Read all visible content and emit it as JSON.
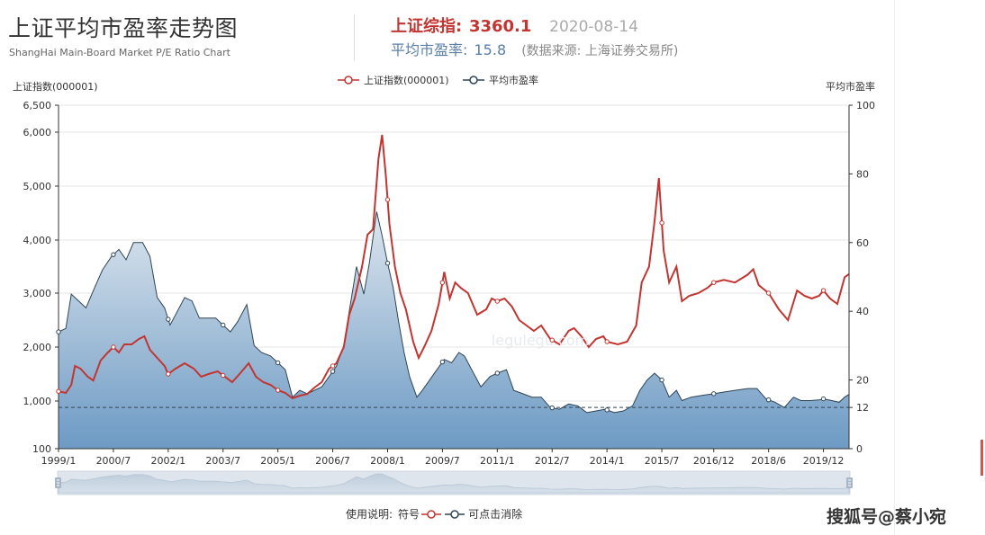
{
  "header": {
    "title": "上证平均市盈率走势图",
    "subtitle": "ShangHai Main-Board Market P/E Ratio Chart",
    "index_label": "上证综指:",
    "index_value": "3360.1",
    "date": "2020-08-14",
    "pe_label": "平均市盈率:",
    "pe_value": "15.8",
    "source": "(数据来源: 上海证券交易所)"
  },
  "usage": {
    "prefix": "使用说明:",
    "symbol": "符号",
    "suffix": "可点击消除"
  },
  "footer_watermark": "搜狐号@蔡小宛",
  "chart_watermark": "legulegu.com",
  "colors": {
    "index": "#c23531",
    "pe_line": "#2f4554",
    "pe_area_top": "#dde6ee",
    "pe_area_bottom": "#6d9ac4",
    "avg_line": "#2f4554"
  },
  "chart_data": {
    "type": "line",
    "legend": [
      "上证指数(000001)",
      "平均市盈率"
    ],
    "legend_position": "top-center",
    "left_axis_title": "上证指数(000001)",
    "right_axis_title": "平均市盈率",
    "left_ticks": [
      "6,500",
      "6,000",
      "5,000",
      "4,000",
      "3,000",
      "2,000",
      "1,000",
      "100"
    ],
    "left_tick_values": [
      6500,
      6000,
      5000,
      4000,
      3000,
      2000,
      1000,
      100
    ],
    "right_ticks": [
      "100",
      "80",
      "60",
      "40",
      "20",
      "12",
      "0"
    ],
    "right_tick_values": [
      100,
      80,
      60,
      40,
      20,
      12,
      0
    ],
    "x_labels": [
      "1999/1",
      "2000/7",
      "2002/1",
      "2003/7",
      "2005/1",
      "2006/7",
      "2008/1",
      "2009/7",
      "2011/1",
      "2012/7",
      "2014/1",
      "2015/7",
      "2016/12",
      "2018/6",
      "2019/12"
    ],
    "x_label_years": [
      1999.0,
      2000.5,
      2002.0,
      2003.5,
      2005.0,
      2006.5,
      2008.0,
      2009.5,
      2011.0,
      2012.5,
      2014.0,
      2015.5,
      2016.92,
      2018.42,
      2019.92
    ],
    "x_range": [
      1999.0,
      2020.62
    ],
    "pe_average_line": 12,
    "series": [
      {
        "name": "上证指数(000001)",
        "axis": "left",
        "points": [
          [
            1999.0,
            1180
          ],
          [
            1999.2,
            1150
          ],
          [
            1999.35,
            1300
          ],
          [
            1999.45,
            1650
          ],
          [
            1999.6,
            1600
          ],
          [
            1999.8,
            1450
          ],
          [
            1999.95,
            1380
          ],
          [
            2000.15,
            1750
          ],
          [
            2000.35,
            1900
          ],
          [
            2000.5,
            2000
          ],
          [
            2000.65,
            1900
          ],
          [
            2000.8,
            2050
          ],
          [
            2001.0,
            2050
          ],
          [
            2001.2,
            2150
          ],
          [
            2001.35,
            2200
          ],
          [
            2001.5,
            1950
          ],
          [
            2001.7,
            1800
          ],
          [
            2001.9,
            1650
          ],
          [
            2002.0,
            1500
          ],
          [
            2002.2,
            1600
          ],
          [
            2002.45,
            1700
          ],
          [
            2002.7,
            1600
          ],
          [
            2002.9,
            1450
          ],
          [
            2003.1,
            1500
          ],
          [
            2003.35,
            1550
          ],
          [
            2003.55,
            1450
          ],
          [
            2003.75,
            1350
          ],
          [
            2003.95,
            1500
          ],
          [
            2004.2,
            1700
          ],
          [
            2004.4,
            1450
          ],
          [
            2004.6,
            1350
          ],
          [
            2004.8,
            1300
          ],
          [
            2005.0,
            1200
          ],
          [
            2005.2,
            1150
          ],
          [
            2005.4,
            1050
          ],
          [
            2005.6,
            1100
          ],
          [
            2005.8,
            1130
          ],
          [
            2006.0,
            1250
          ],
          [
            2006.2,
            1350
          ],
          [
            2006.4,
            1600
          ],
          [
            2006.6,
            1700
          ],
          [
            2006.8,
            2000
          ],
          [
            2006.95,
            2600
          ],
          [
            2007.1,
            2900
          ],
          [
            2007.3,
            3500
          ],
          [
            2007.45,
            4100
          ],
          [
            2007.6,
            4200
          ],
          [
            2007.75,
            5500
          ],
          [
            2007.85,
            5950
          ],
          [
            2007.95,
            5200
          ],
          [
            2008.05,
            4300
          ],
          [
            2008.2,
            3500
          ],
          [
            2008.35,
            3000
          ],
          [
            2008.5,
            2700
          ],
          [
            2008.7,
            2100
          ],
          [
            2008.85,
            1800
          ],
          [
            2009.0,
            2000
          ],
          [
            2009.2,
            2300
          ],
          [
            2009.4,
            2800
          ],
          [
            2009.55,
            3400
          ],
          [
            2009.7,
            2900
          ],
          [
            2009.85,
            3200
          ],
          [
            2010.0,
            3100
          ],
          [
            2010.2,
            3000
          ],
          [
            2010.45,
            2600
          ],
          [
            2010.7,
            2700
          ],
          [
            2010.85,
            2900
          ],
          [
            2011.0,
            2850
          ],
          [
            2011.2,
            2900
          ],
          [
            2011.4,
            2750
          ],
          [
            2011.6,
            2500
          ],
          [
            2011.8,
            2400
          ],
          [
            2012.0,
            2300
          ],
          [
            2012.2,
            2400
          ],
          [
            2012.45,
            2150
          ],
          [
            2012.7,
            2050
          ],
          [
            2012.95,
            2300
          ],
          [
            2013.1,
            2350
          ],
          [
            2013.3,
            2200
          ],
          [
            2013.5,
            2000
          ],
          [
            2013.7,
            2150
          ],
          [
            2013.9,
            2200
          ],
          [
            2014.0,
            2100
          ],
          [
            2014.3,
            2050
          ],
          [
            2014.55,
            2100
          ],
          [
            2014.8,
            2400
          ],
          [
            2014.95,
            3200
          ],
          [
            2015.15,
            3500
          ],
          [
            2015.3,
            4350
          ],
          [
            2015.42,
            5150
          ],
          [
            2015.55,
            3800
          ],
          [
            2015.7,
            3200
          ],
          [
            2015.9,
            3500
          ],
          [
            2016.05,
            2850
          ],
          [
            2016.25,
            2950
          ],
          [
            2016.5,
            3000
          ],
          [
            2016.75,
            3100
          ],
          [
            2016.92,
            3200
          ],
          [
            2017.2,
            3250
          ],
          [
            2017.5,
            3200
          ],
          [
            2017.85,
            3350
          ],
          [
            2018.0,
            3450
          ],
          [
            2018.15,
            3150
          ],
          [
            2018.42,
            3000
          ],
          [
            2018.7,
            2700
          ],
          [
            2018.95,
            2500
          ],
          [
            2019.2,
            3050
          ],
          [
            2019.4,
            2950
          ],
          [
            2019.6,
            2900
          ],
          [
            2019.8,
            2950
          ],
          [
            2019.92,
            3050
          ],
          [
            2020.1,
            2900
          ],
          [
            2020.3,
            2800
          ],
          [
            2020.5,
            3300
          ],
          [
            2020.62,
            3360
          ]
        ]
      },
      {
        "name": "平均市盈率",
        "axis": "right",
        "points": [
          [
            1999.0,
            34
          ],
          [
            1999.2,
            35
          ],
          [
            1999.35,
            45
          ],
          [
            1999.55,
            43
          ],
          [
            1999.75,
            41
          ],
          [
            1999.95,
            46
          ],
          [
            2000.2,
            52
          ],
          [
            2000.45,
            56
          ],
          [
            2000.65,
            58
          ],
          [
            2000.85,
            55
          ],
          [
            2001.05,
            60
          ],
          [
            2001.3,
            60
          ],
          [
            2001.5,
            56
          ],
          [
            2001.7,
            44
          ],
          [
            2001.9,
            41
          ],
          [
            2002.05,
            36
          ],
          [
            2002.25,
            40
          ],
          [
            2002.45,
            44
          ],
          [
            2002.65,
            43
          ],
          [
            2002.85,
            38
          ],
          [
            2003.05,
            38
          ],
          [
            2003.3,
            38
          ],
          [
            2003.5,
            36
          ],
          [
            2003.7,
            34
          ],
          [
            2003.9,
            37
          ],
          [
            2004.15,
            42
          ],
          [
            2004.35,
            30
          ],
          [
            2004.55,
            28
          ],
          [
            2004.8,
            27
          ],
          [
            2005.0,
            25
          ],
          [
            2005.2,
            23
          ],
          [
            2005.4,
            15
          ],
          [
            2005.6,
            17
          ],
          [
            2005.8,
            16
          ],
          [
            2006.0,
            17
          ],
          [
            2006.2,
            18
          ],
          [
            2006.4,
            21
          ],
          [
            2006.6,
            24
          ],
          [
            2006.8,
            30
          ],
          [
            2006.95,
            40
          ],
          [
            2007.15,
            53
          ],
          [
            2007.35,
            45
          ],
          [
            2007.5,
            54
          ],
          [
            2007.7,
            69
          ],
          [
            2007.85,
            62
          ],
          [
            2008.0,
            54
          ],
          [
            2008.15,
            47
          ],
          [
            2008.3,
            37
          ],
          [
            2008.45,
            28
          ],
          [
            2008.6,
            21
          ],
          [
            2008.8,
            15
          ],
          [
            2008.95,
            17
          ],
          [
            2009.15,
            20
          ],
          [
            2009.35,
            23
          ],
          [
            2009.55,
            26
          ],
          [
            2009.75,
            25
          ],
          [
            2009.95,
            28
          ],
          [
            2010.1,
            27
          ],
          [
            2010.3,
            23
          ],
          [
            2010.55,
            18
          ],
          [
            2010.8,
            21
          ],
          [
            2011.0,
            22
          ],
          [
            2011.25,
            23
          ],
          [
            2011.45,
            17
          ],
          [
            2011.7,
            16
          ],
          [
            2011.95,
            15
          ],
          [
            2012.2,
            15
          ],
          [
            2012.45,
            12
          ],
          [
            2012.7,
            11.5
          ],
          [
            2012.95,
            13
          ],
          [
            2013.2,
            12.5
          ],
          [
            2013.45,
            10.5
          ],
          [
            2013.7,
            11
          ],
          [
            2013.95,
            11.5
          ],
          [
            2014.2,
            10.5
          ],
          [
            2014.45,
            11
          ],
          [
            2014.7,
            12.5
          ],
          [
            2014.9,
            17
          ],
          [
            2015.1,
            20
          ],
          [
            2015.3,
            22
          ],
          [
            2015.5,
            20
          ],
          [
            2015.7,
            15
          ],
          [
            2015.9,
            17
          ],
          [
            2016.05,
            14
          ],
          [
            2016.3,
            15
          ],
          [
            2016.6,
            15.5
          ],
          [
            2016.92,
            16
          ],
          [
            2017.2,
            16.5
          ],
          [
            2017.5,
            17
          ],
          [
            2017.85,
            17.5
          ],
          [
            2018.1,
            17.5
          ],
          [
            2018.35,
            14.5
          ],
          [
            2018.6,
            13.5
          ],
          [
            2018.85,
            12
          ],
          [
            2019.1,
            15
          ],
          [
            2019.3,
            14
          ],
          [
            2019.55,
            14
          ],
          [
            2019.8,
            14.2
          ],
          [
            2019.92,
            14.5
          ],
          [
            2020.15,
            14
          ],
          [
            2020.35,
            13.5
          ],
          [
            2020.5,
            15
          ],
          [
            2020.62,
            15.8
          ]
        ]
      }
    ]
  }
}
